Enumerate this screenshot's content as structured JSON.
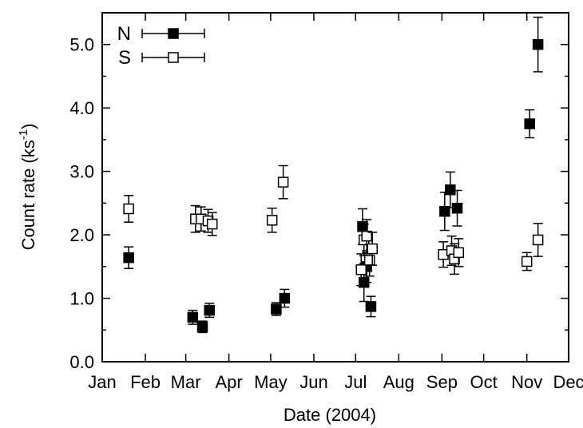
{
  "chart_data": {
    "type": "scatter",
    "title": "",
    "xlabel": "Date (2004)",
    "ylabel": "Count rate (ks",
    "ylabel_sup": "-1",
    "ylabel_close": ")",
    "x_categories": [
      "Jan",
      "Feb",
      "Mar",
      "Apr",
      "May",
      "Jun",
      "Jul",
      "Aug",
      "Sep",
      "Oct",
      "Nov",
      "Dec"
    ],
    "xlim": [
      "2004-01-01",
      "2004-12-01"
    ],
    "ylim": [
      0,
      5.5
    ],
    "yticks": [
      "0.0",
      "1.0",
      "2.0",
      "3.0",
      "4.0",
      "5.0"
    ],
    "legend_position": "top-left",
    "series": [
      {
        "name": "N",
        "marker": "filled-square",
        "color": "#000000",
        "points": [
          {
            "date": "2004-01-20",
            "y": 1.64,
            "err": 0.17
          },
          {
            "date": "2004-03-06",
            "y": 0.7,
            "err": 0.11
          },
          {
            "date": "2004-03-13",
            "y": 0.55,
            "err": 0.09
          },
          {
            "date": "2004-03-18",
            "y": 0.81,
            "err": 0.11
          },
          {
            "date": "2004-05-05",
            "y": 0.83,
            "err": 0.1
          },
          {
            "date": "2004-05-11",
            "y": 1.0,
            "err": 0.14
          },
          {
            "date": "2004-07-06",
            "y": 2.13,
            "err": 0.28
          },
          {
            "date": "2004-07-07",
            "y": 1.25,
            "err": 0.3
          },
          {
            "date": "2004-07-09",
            "y": 1.5,
            "err": 0.25
          },
          {
            "date": "2004-07-12",
            "y": 0.87,
            "err": 0.16
          },
          {
            "date": "2004-09-03",
            "y": 2.37,
            "err": 0.3
          },
          {
            "date": "2004-09-07",
            "y": 2.71,
            "err": 0.28
          },
          {
            "date": "2004-09-12",
            "y": 2.42,
            "err": 0.28
          },
          {
            "date": "2004-11-03",
            "y": 3.75,
            "err": 0.22
          },
          {
            "date": "2004-11-09",
            "y": 5.0,
            "err": 0.43
          }
        ]
      },
      {
        "name": "S",
        "marker": "open-square",
        "color": "#000000",
        "points": [
          {
            "date": "2004-01-20",
            "y": 2.41,
            "err": 0.21
          },
          {
            "date": "2004-03-08",
            "y": 2.25,
            "err": 0.21
          },
          {
            "date": "2004-03-12",
            "y": 2.25,
            "err": 0.19
          },
          {
            "date": "2004-03-17",
            "y": 2.22,
            "err": 0.18
          },
          {
            "date": "2004-03-20",
            "y": 2.17,
            "err": 0.18
          },
          {
            "date": "2004-05-02",
            "y": 2.23,
            "err": 0.19
          },
          {
            "date": "2004-05-10",
            "y": 2.83,
            "err": 0.26
          },
          {
            "date": "2004-07-05",
            "y": 1.45,
            "err": 0.25
          },
          {
            "date": "2004-07-07",
            "y": 1.92,
            "err": 0.25
          },
          {
            "date": "2004-07-09",
            "y": 1.98,
            "err": 0.26
          },
          {
            "date": "2004-07-11",
            "y": 1.6,
            "err": 0.25
          },
          {
            "date": "2004-07-13",
            "y": 1.78,
            "err": 0.26
          },
          {
            "date": "2004-09-02",
            "y": 1.69,
            "err": 0.2
          },
          {
            "date": "2004-09-08",
            "y": 1.75,
            "err": 0.23
          },
          {
            "date": "2004-09-10",
            "y": 1.62,
            "err": 0.24
          },
          {
            "date": "2004-09-13",
            "y": 1.72,
            "err": 0.22
          },
          {
            "date": "2004-11-01",
            "y": 1.58,
            "err": 0.14
          },
          {
            "date": "2004-11-09",
            "y": 1.92,
            "err": 0.26
          }
        ]
      }
    ]
  }
}
